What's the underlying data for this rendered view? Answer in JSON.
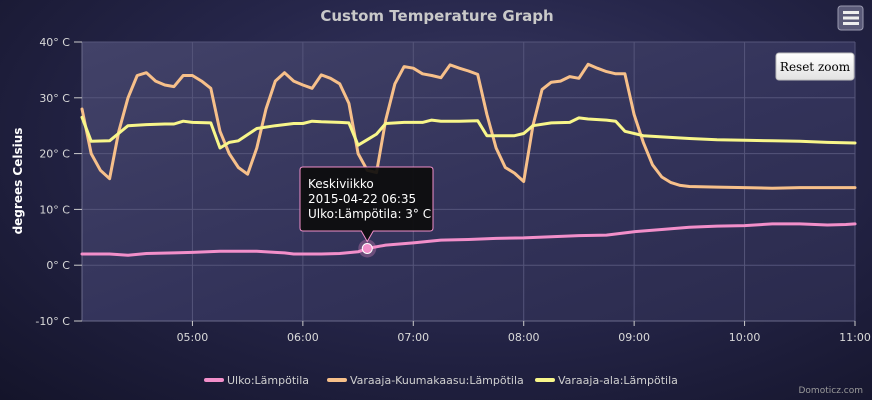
{
  "chart_data": {
    "type": "line",
    "title": "Custom Temperature Graph",
    "ylabel": "degrees Celsius",
    "xlabel": "",
    "ylim": [
      -10,
      40
    ],
    "y_ticks": [
      {
        "value": 40,
        "label": "40° C"
      },
      {
        "value": 30,
        "label": "30° C"
      },
      {
        "value": 20,
        "label": "20° C"
      },
      {
        "value": 10,
        "label": "10° C"
      },
      {
        "value": 0,
        "label": "0° C"
      },
      {
        "value": -10,
        "label": "-10° C"
      }
    ],
    "xlim": [
      "04:00",
      "11:00"
    ],
    "x_ticks": [
      "05:00",
      "06:00",
      "07:00",
      "08:00",
      "09:00",
      "10:00",
      "11:00"
    ],
    "grid": true,
    "legend_position": "bottom-center",
    "series": [
      {
        "name": "Ulko:Lämpötila",
        "color": "#f28fca",
        "points": [
          [
            "04:00",
            2.0
          ],
          [
            "04:15",
            2.0
          ],
          [
            "04:25",
            1.8
          ],
          [
            "04:35",
            2.1
          ],
          [
            "04:50",
            2.2
          ],
          [
            "05:00",
            2.3
          ],
          [
            "05:15",
            2.5
          ],
          [
            "05:35",
            2.5
          ],
          [
            "05:45",
            2.3
          ],
          [
            "05:50",
            2.2
          ],
          [
            "05:55",
            2.0
          ],
          [
            "06:00",
            2.0
          ],
          [
            "06:10",
            2.0
          ],
          [
            "06:20",
            2.1
          ],
          [
            "06:30",
            2.4
          ],
          [
            "06:35",
            3.0
          ],
          [
            "06:45",
            3.6
          ],
          [
            "07:00",
            4.0
          ],
          [
            "07:15",
            4.5
          ],
          [
            "07:30",
            4.6
          ],
          [
            "07:45",
            4.8
          ],
          [
            "08:00",
            4.9
          ],
          [
            "08:15",
            5.1
          ],
          [
            "08:30",
            5.3
          ],
          [
            "08:45",
            5.4
          ],
          [
            "09:00",
            6.0
          ],
          [
            "09:15",
            6.4
          ],
          [
            "09:30",
            6.8
          ],
          [
            "09:45",
            7.0
          ],
          [
            "10:00",
            7.1
          ],
          [
            "10:15",
            7.4
          ],
          [
            "10:30",
            7.4
          ],
          [
            "10:45",
            7.2
          ],
          [
            "10:55",
            7.3
          ],
          [
            "11:00",
            7.4
          ]
        ]
      },
      {
        "name": "Varaaja-Kuumakaasu:Lämpötila",
        "color": "#f7c08a",
        "points": [
          [
            "04:00",
            28
          ],
          [
            "04:05",
            20
          ],
          [
            "04:10",
            17
          ],
          [
            "04:15",
            15.5
          ],
          [
            "04:20",
            24
          ],
          [
            "04:25",
            30
          ],
          [
            "04:30",
            34
          ],
          [
            "04:35",
            34.5
          ],
          [
            "04:40",
            33
          ],
          [
            "04:45",
            32.3
          ],
          [
            "04:50",
            32
          ],
          [
            "04:55",
            34
          ],
          [
            "05:00",
            34
          ],
          [
            "05:05",
            33
          ],
          [
            "05:10",
            31.7
          ],
          [
            "05:15",
            24
          ],
          [
            "05:20",
            20
          ],
          [
            "05:25",
            17.5
          ],
          [
            "05:30",
            16.3
          ],
          [
            "05:35",
            21
          ],
          [
            "05:40",
            28
          ],
          [
            "05:45",
            33
          ],
          [
            "05:50",
            34.5
          ],
          [
            "05:55",
            33
          ],
          [
            "06:00",
            32.3
          ],
          [
            "06:05",
            31.7
          ],
          [
            "06:10",
            34.1
          ],
          [
            "06:15",
            33.5
          ],
          [
            "06:20",
            32.5
          ],
          [
            "06:25",
            29
          ],
          [
            "06:30",
            20
          ],
          [
            "06:35",
            17
          ],
          [
            "06:40",
            16.6
          ],
          [
            "06:45",
            26
          ],
          [
            "06:50",
            32.5
          ],
          [
            "06:55",
            35.6
          ],
          [
            "07:00",
            35.3
          ],
          [
            "07:05",
            34.3
          ],
          [
            "07:10",
            34
          ],
          [
            "07:15",
            33.6
          ],
          [
            "07:20",
            35.9
          ],
          [
            "07:25",
            35.3
          ],
          [
            "07:30",
            34.8
          ],
          [
            "07:35",
            34.2
          ],
          [
            "07:40",
            27
          ],
          [
            "07:45",
            21
          ],
          [
            "07:50",
            17.5
          ],
          [
            "07:55",
            16.5
          ],
          [
            "08:00",
            15
          ],
          [
            "08:05",
            25
          ],
          [
            "08:10",
            31.5
          ],
          [
            "08:15",
            32.8
          ],
          [
            "08:20",
            33
          ],
          [
            "08:25",
            33.8
          ],
          [
            "08:30",
            33.5
          ],
          [
            "08:35",
            36
          ],
          [
            "08:40",
            35.3
          ],
          [
            "08:45",
            34.7
          ],
          [
            "08:50",
            34.3
          ],
          [
            "08:55",
            34.3
          ],
          [
            "09:00",
            27
          ],
          [
            "09:05",
            22
          ],
          [
            "09:10",
            18
          ],
          [
            "09:15",
            15.8
          ],
          [
            "09:20",
            14.8
          ],
          [
            "09:25",
            14.3
          ],
          [
            "09:30",
            14.1
          ],
          [
            "09:45",
            14.0
          ],
          [
            "10:00",
            13.9
          ],
          [
            "10:15",
            13.8
          ],
          [
            "10:30",
            13.9
          ],
          [
            "10:45",
            13.9
          ],
          [
            "11:00",
            13.9
          ]
        ]
      },
      {
        "name": "Varaaja-ala:Lämpötila",
        "color": "#f8f68a",
        "points": [
          [
            "04:00",
            26.5
          ],
          [
            "04:05",
            22.2
          ],
          [
            "04:15",
            22.3
          ],
          [
            "04:25",
            25
          ],
          [
            "04:35",
            25.2
          ],
          [
            "04:45",
            25.3
          ],
          [
            "04:50",
            25.3
          ],
          [
            "04:55",
            25.8
          ],
          [
            "05:00",
            25.6
          ],
          [
            "05:10",
            25.5
          ],
          [
            "05:15",
            21
          ],
          [
            "05:20",
            22
          ],
          [
            "05:25",
            22.3
          ],
          [
            "05:35",
            24.5
          ],
          [
            "05:45",
            25
          ],
          [
            "05:55",
            25.4
          ],
          [
            "06:00",
            25.4
          ],
          [
            "06:05",
            25.8
          ],
          [
            "06:10",
            25.7
          ],
          [
            "06:20",
            25.6
          ],
          [
            "06:25",
            25.5
          ],
          [
            "06:30",
            21.5
          ],
          [
            "06:35",
            22.5
          ],
          [
            "06:40",
            23.5
          ],
          [
            "06:45",
            25.4
          ],
          [
            "06:55",
            25.6
          ],
          [
            "07:05",
            25.6
          ],
          [
            "07:10",
            26
          ],
          [
            "07:15",
            25.8
          ],
          [
            "07:25",
            25.8
          ],
          [
            "07:35",
            25.9
          ],
          [
            "07:40",
            23.2
          ],
          [
            "07:55",
            23.2
          ],
          [
            "08:00",
            23.6
          ],
          [
            "08:05",
            25
          ],
          [
            "08:15",
            25.5
          ],
          [
            "08:25",
            25.6
          ],
          [
            "08:30",
            26.4
          ],
          [
            "08:35",
            26.2
          ],
          [
            "08:45",
            26.0
          ],
          [
            "08:50",
            25.8
          ],
          [
            "08:55",
            24
          ],
          [
            "09:05",
            23.2
          ],
          [
            "09:15",
            23.0
          ],
          [
            "09:30",
            22.7
          ],
          [
            "09:45",
            22.5
          ],
          [
            "10:00",
            22.4
          ],
          [
            "10:15",
            22.3
          ],
          [
            "10:30",
            22.2
          ],
          [
            "10:45",
            22.0
          ],
          [
            "11:00",
            21.9
          ]
        ]
      }
    ]
  },
  "tooltip": {
    "weekday": "Keskiviikko",
    "datetime": "2015-04-22 06:35",
    "text": "Ulko:Lämpötila: 3° C",
    "x": "06:35",
    "y": 3.0,
    "border_color": "#f28fca"
  },
  "reset_zoom_label": "Reset zoom",
  "menu_icon": "hamburger-menu-icon",
  "credits": "Domoticz.com"
}
